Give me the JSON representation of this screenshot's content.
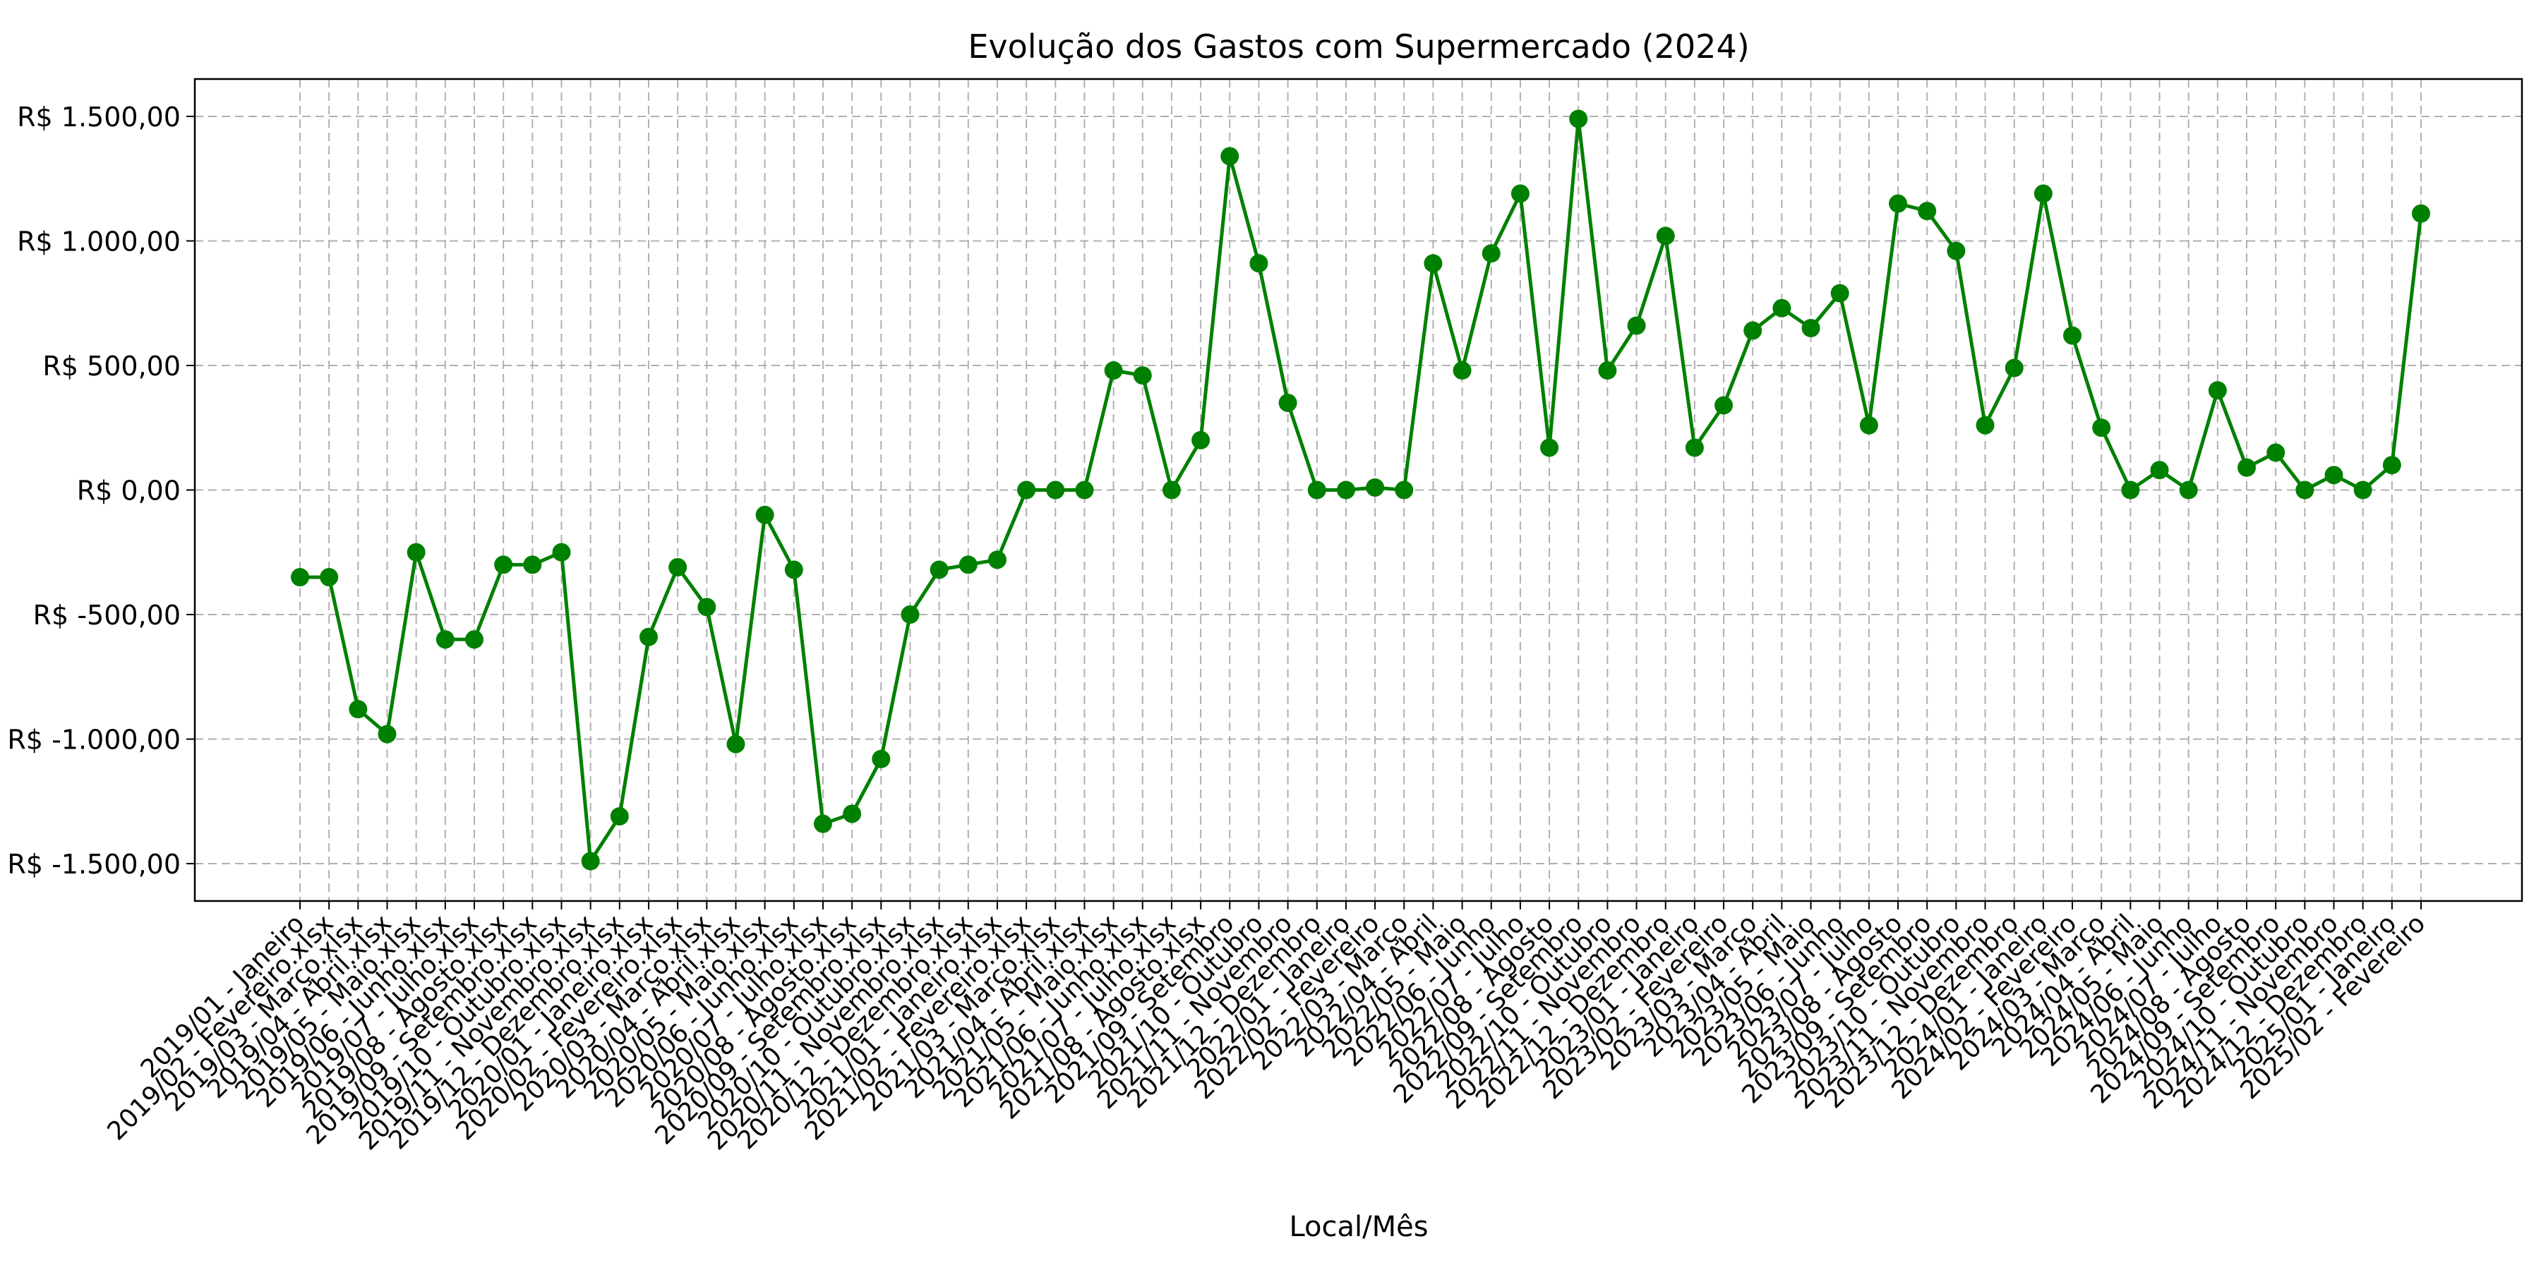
{
  "chart_data": {
    "type": "line",
    "title": "Evolução dos Gastos com Supermercado (2024)",
    "xlabel": "Local/Mês",
    "ylabel": "",
    "ylim": [
      -1650,
      1650
    ],
    "yticks": [
      -1500,
      -1000,
      -500,
      0,
      500,
      1000,
      1500
    ],
    "ytick_labels": [
      "R$ -1.500,00",
      "R$ -1.000,00",
      "R$ -500,00",
      "R$ 0,00",
      "R$ 500,00",
      "R$ 1.000,00",
      "R$ 1.500,00"
    ],
    "grid": true,
    "line_color": "#008000",
    "categories": [
      "2019/01 - Janeiro",
      "2019/02 - Fevereiro.xlsx",
      "2019/03 - Março.xlsx",
      "2019/04 - Abril.xlsx",
      "2019/05 - Maio.xlsx",
      "2019/06 - Junho.xlsx",
      "2019/07 - Julho.xlsx",
      "2019/08 - Agosto.xlsx",
      "2019/09 - Setembro.xlsx",
      "2019/10 - Outubro.xlsx",
      "2019/11 - Novembro.xlsx",
      "2019/12 - Dezembro.xlsx",
      "2020/01 - Janeiro.xlsx",
      "2020/02 - Fevereiro.xlsx",
      "2020/03 - Março.xlsx",
      "2020/04 - Abril.xlsx",
      "2020/05 - Maio.xlsx",
      "2020/06 - Junho.xlsx",
      "2020/07 - Julho.xlsx",
      "2020/08 - Agosto.xlsx",
      "2020/09 - Setembro.xlsx",
      "2020/10 - Outubro.xlsx",
      "2020/11 - Novembro.xlsx",
      "2020/12 - Dezembro.xlsx",
      "2021/01 - Janeiro.xlsx",
      "2021/02 - Fevereiro.xlsx",
      "2021/03 - Março.xlsx",
      "2021/04 - Abril.xlsx",
      "2021/05 - Maio.xlsx",
      "2021/06 - Junho.xlsx",
      "2021/07 - Julho.xlsx",
      "2021/08 - Agosto.xlsx",
      "2021/09 - Setembro",
      "2021/10 - Outubro",
      "2021/11 - Novembro",
      "2021/12 - Dezembro",
      "2022/01 - Janeiro",
      "2022/02 - Fevereiro",
      "2022/03 - Março",
      "2022/04 - Abril",
      "2022/05 - Maio",
      "2022/06 - Junho",
      "2022/07 - Julho",
      "2022/08 - Agosto",
      "2022/09 - Setembro",
      "2022/10 - Outubro",
      "2022/11 - Novembro",
      "2022/12 - Dezembro",
      "2023/01 - Janeiro",
      "2023/02 - Fevereiro",
      "2023/03 - Março",
      "2023/04 - Abril",
      "2023/05 - Maio",
      "2023/06 - Junho",
      "2023/07 - Julho",
      "2023/08 - Agosto",
      "2023/09 - Setembro",
      "2023/10 - Outubro",
      "2023/11 - Novembro",
      "2023/12 - Dezembro",
      "2024/01 - Janeiro",
      "2024/02 - Fevereiro",
      "2024/03 - Março",
      "2024/04 - Abril",
      "2024/05 - Maio",
      "2024/06 - Junho",
      "2024/07 - Julho",
      "2024/08 - Agosto",
      "2024/09 - Setembro",
      "2024/10 - Outubro",
      "2024/11 - Novembro",
      "2024/12 - Dezembro",
      "2025/01 - Janeiro",
      "2025/02 - Fevereiro"
    ],
    "values": [
      -350,
      -350,
      -880,
      -980,
      -250,
      -600,
      -600,
      -300,
      -300,
      -250,
      -1490,
      -1310,
      -590,
      -310,
      -470,
      -1020,
      -100,
      -320,
      -1340,
      -1300,
      -1080,
      -500,
      -320,
      -300,
      -280,
      0,
      0,
      0,
      480,
      460,
      0,
      200,
      1340,
      910,
      350,
      0,
      0,
      10,
      0,
      910,
      480,
      950,
      1190,
      170,
      1490,
      480,
      660,
      1020,
      170,
      340,
      640,
      730,
      650,
      790,
      260,
      1150,
      1120,
      960,
      260,
      490,
      1190,
      620,
      250,
      0,
      80,
      0,
      400,
      90,
      150,
      0,
      60,
      0,
      100,
      1110
    ]
  }
}
